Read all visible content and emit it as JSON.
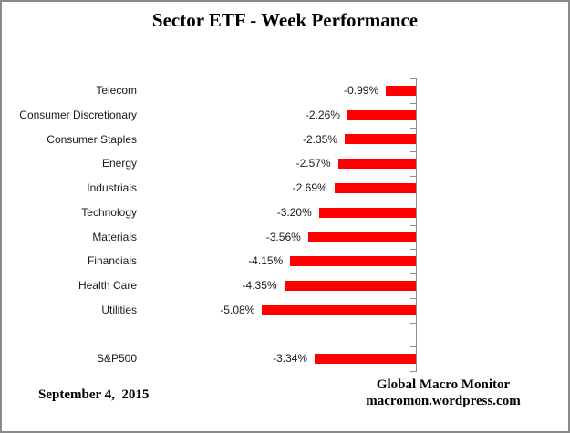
{
  "title": "Sector ETF - Week Performance",
  "footer": {
    "date": "September 4,  2015",
    "source_line1": "Global Macro Monitor",
    "source_line2": "macromon.wordpress.com"
  },
  "chart_data": {
    "type": "bar",
    "orientation": "horizontal",
    "title": "Sector ETF - Week Performance",
    "xlabel": "",
    "ylabel": "",
    "xlim": [
      -6,
      0
    ],
    "grid": false,
    "legend": false,
    "bar_color": "#ff0000",
    "axis_color": "#8c8c8c",
    "categories": [
      "Telecom",
      "Consumer Discretionary",
      "Consumer Staples",
      "Energy",
      "Industrials",
      "Technology",
      "Materials",
      "Financials",
      "Health Care",
      "Utilities",
      "",
      "S&P500"
    ],
    "values": [
      -0.99,
      -2.26,
      -2.35,
      -2.57,
      -2.69,
      -3.2,
      -3.56,
      -4.15,
      -4.35,
      -5.08,
      null,
      -3.34
    ],
    "data_labels": [
      "-0.99%",
      "-2.26%",
      "-2.35%",
      "-2.57%",
      "-2.69%",
      "-3.20%",
      "-3.56%",
      "-4.15%",
      "-4.35%",
      "-5.08%",
      "",
      "-3.34%"
    ]
  }
}
